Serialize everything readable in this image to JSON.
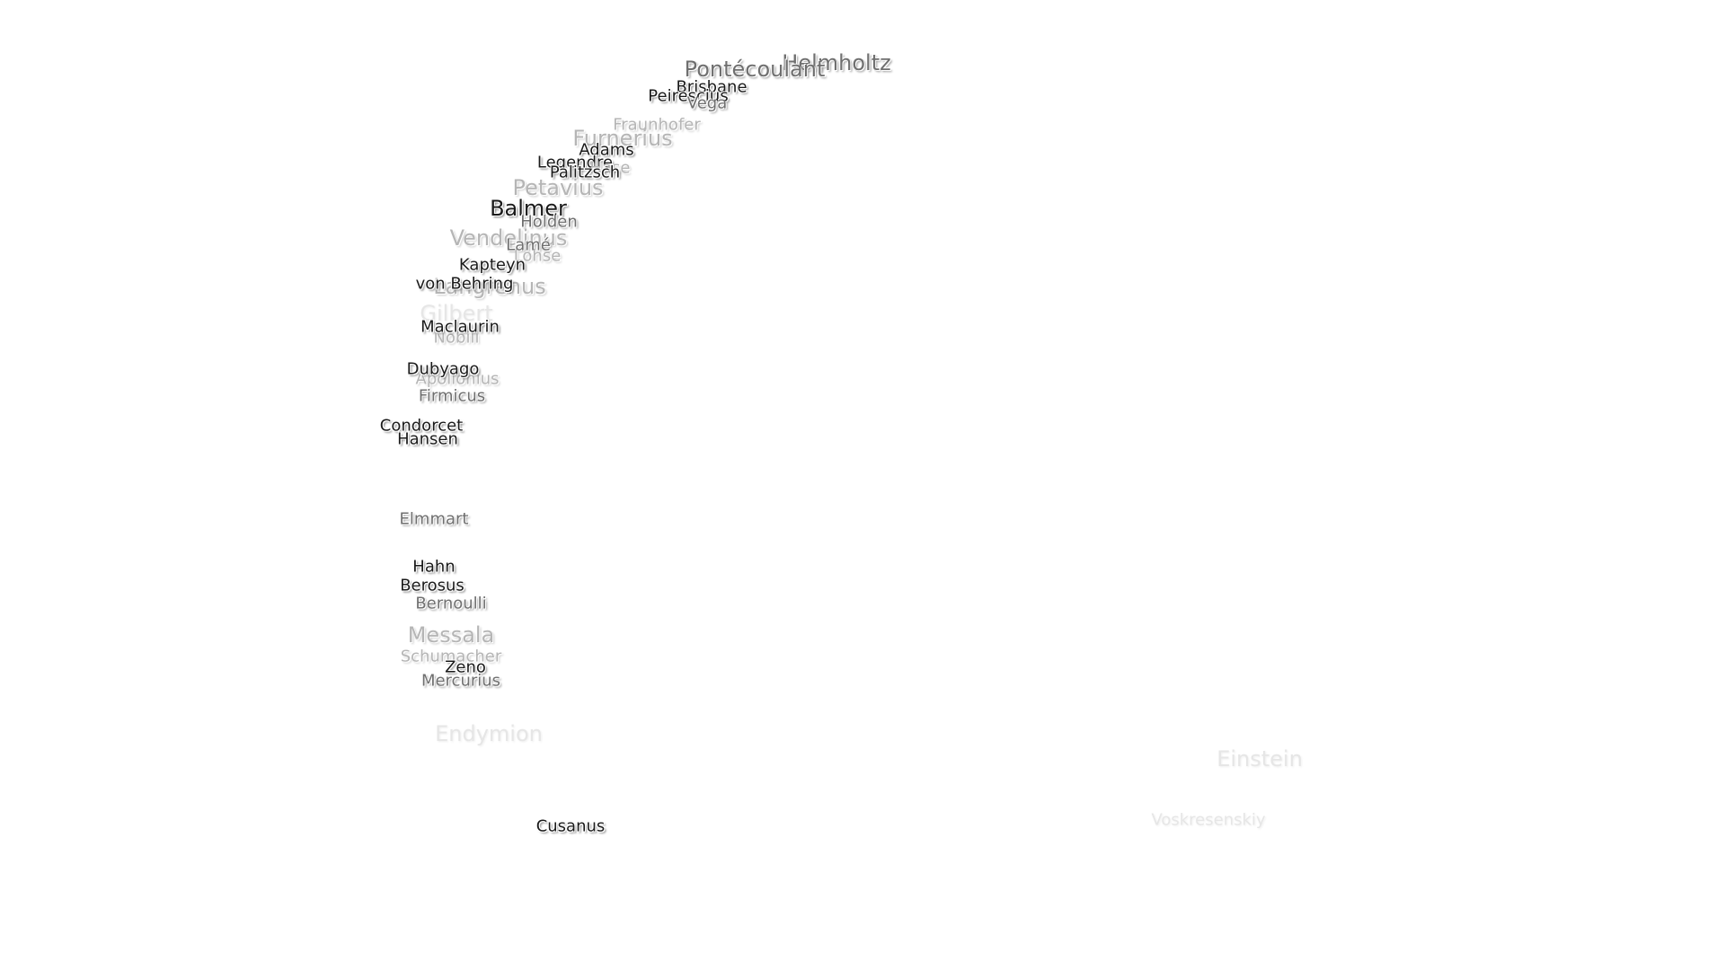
{
  "labels": [
    "Helmholtz",
    "Pontécoulant",
    "Brisbane",
    "Peirescius",
    "Vega",
    "Fraunhofer",
    "Furnerius",
    "Adams",
    "Legendre",
    "Hase",
    "Palitzsch",
    "Petavius",
    "Balmer",
    "Holden",
    "Vendelinus",
    "Lamé",
    "Lohse",
    "Kapteyn",
    "von Behring",
    "Langrenus",
    "Gilbert",
    "Maclaurin",
    "Nobili",
    "Dubyago",
    "Apollonius",
    "Firmicus",
    "Condorcet",
    "Hansen",
    "Elmmart",
    "Hahn",
    "Berosus",
    "Bernoulli",
    "Messala",
    "Schumacher",
    "Zeno",
    "Mercurius",
    "Endymion",
    "Cusanus",
    "Einstein",
    "Voskresenskiy"
  ]
}
